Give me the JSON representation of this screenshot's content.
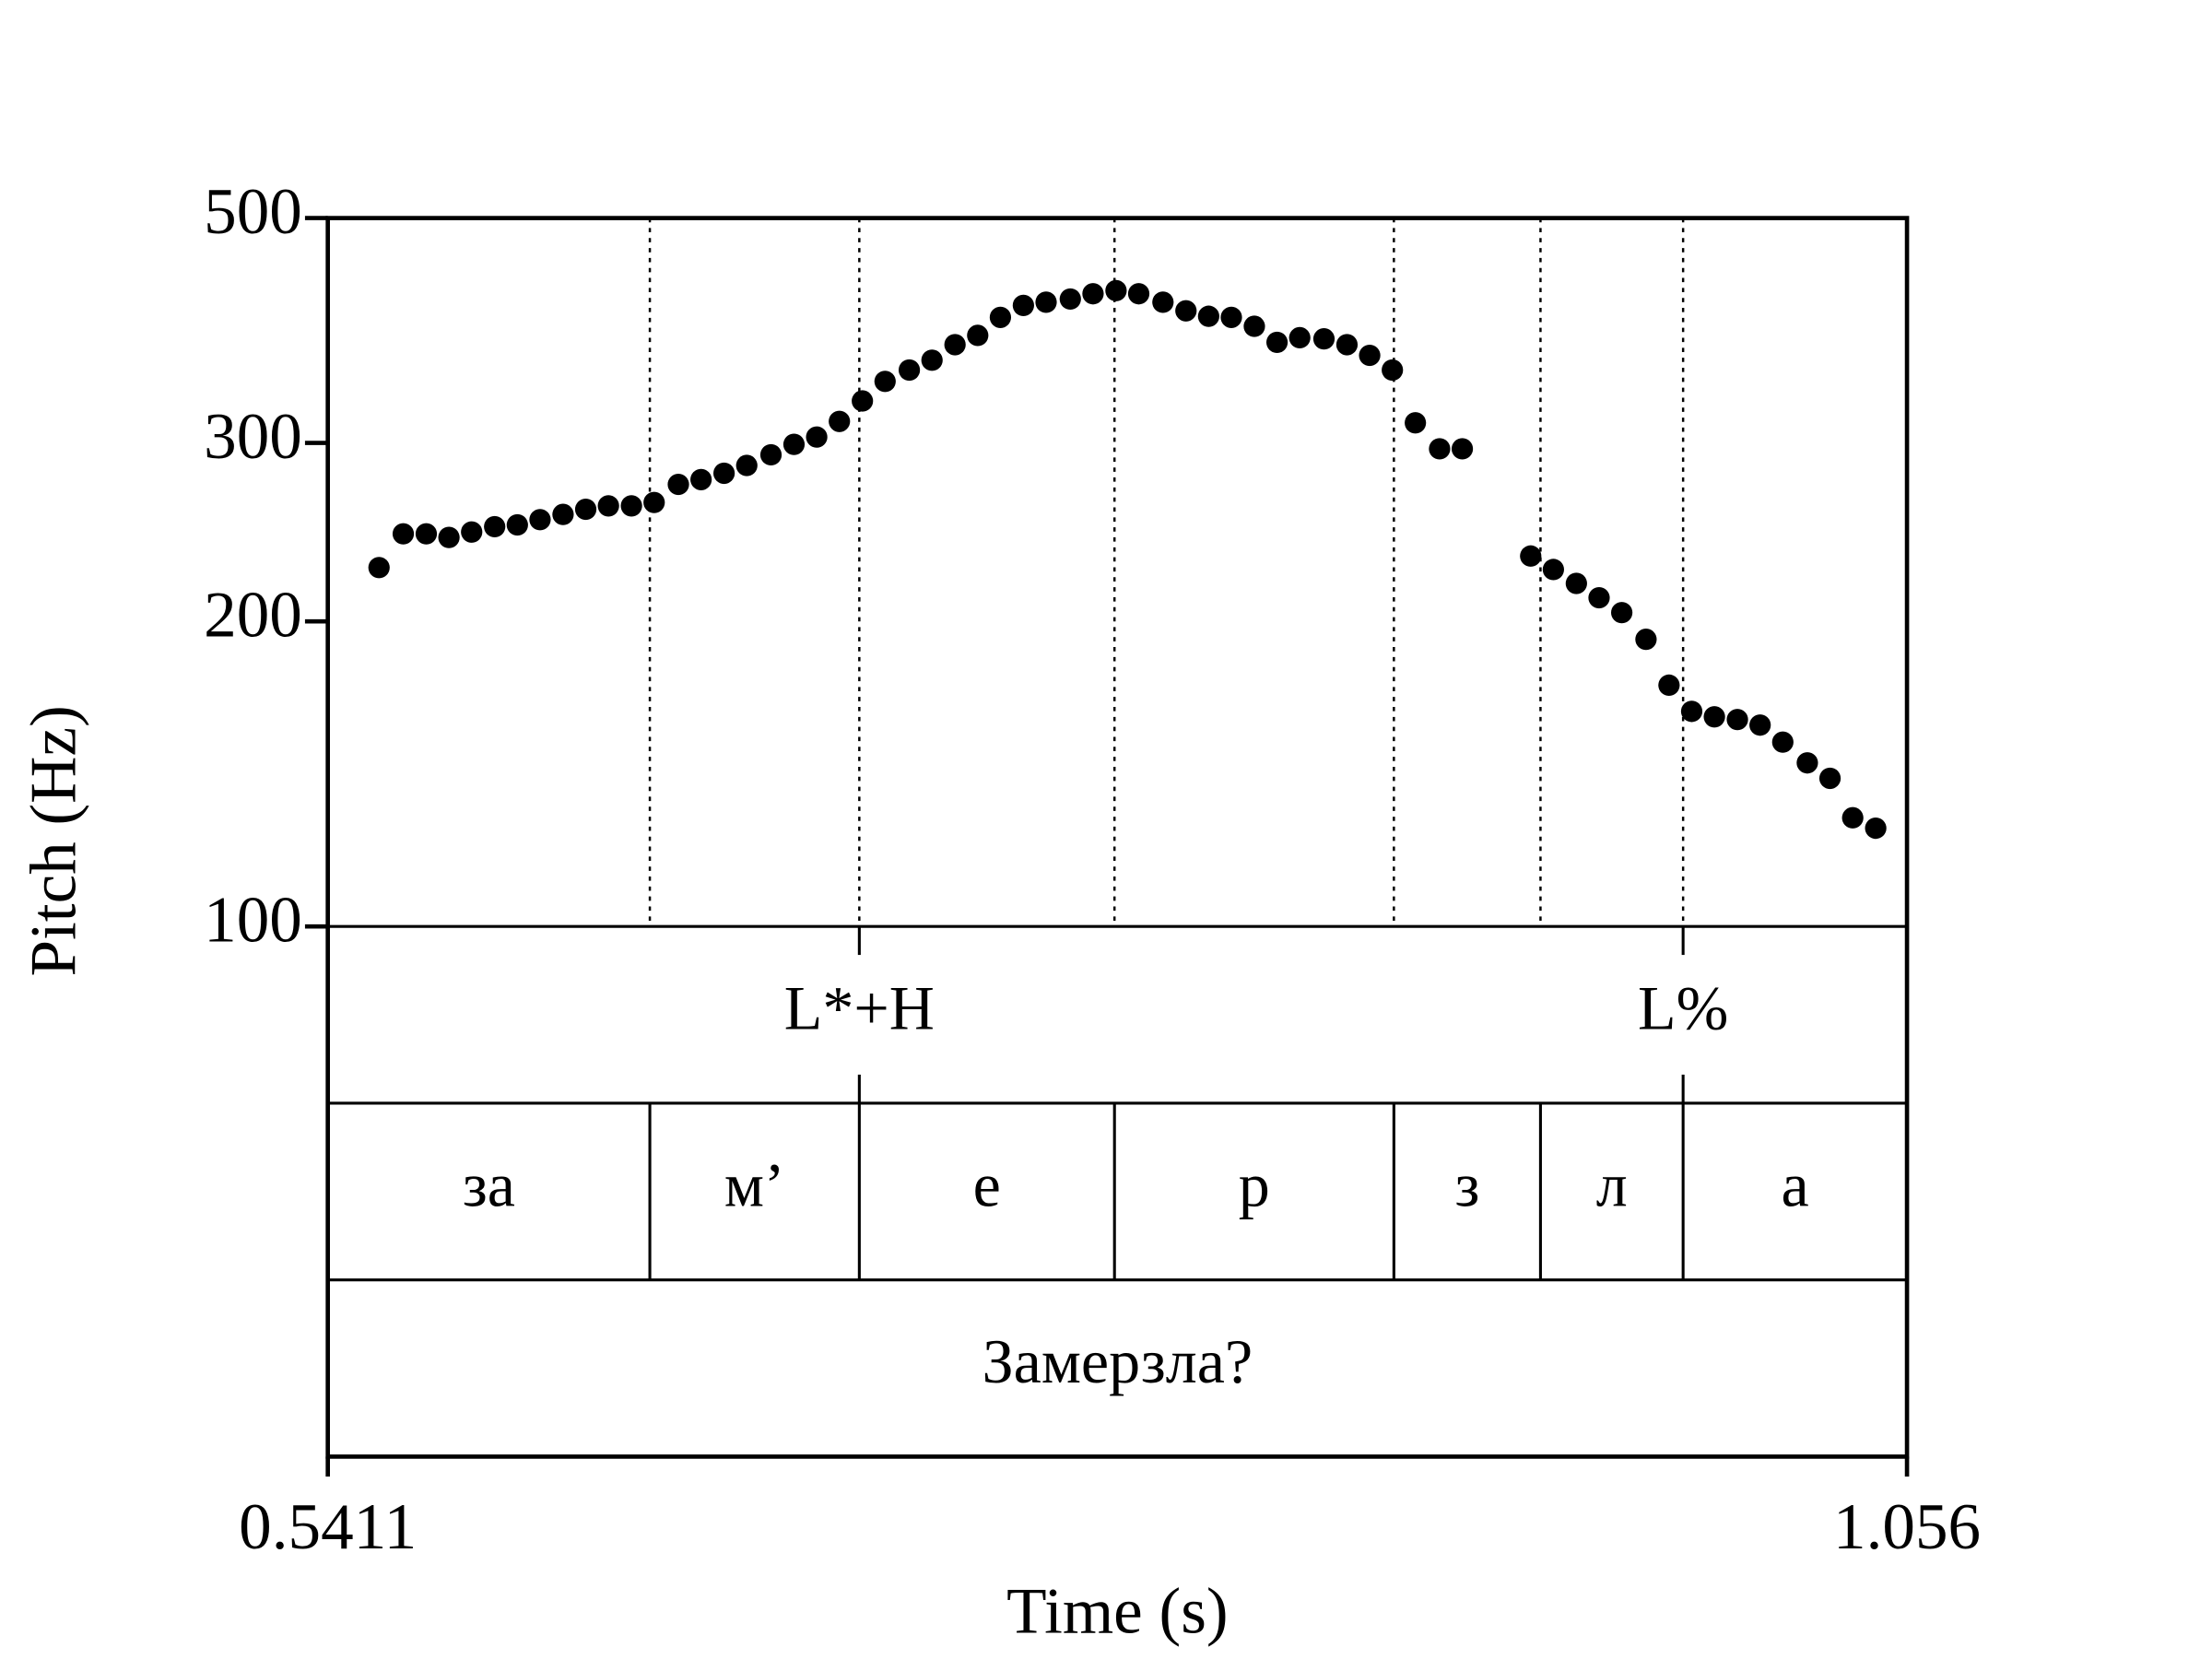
{
  "chart_data": {
    "type": "scatter",
    "y_label": "Pitch (Hz)",
    "x_label": "Time (s)",
    "xlim": [
      0.5411,
      1.056
    ],
    "xticks": [
      0.5411,
      1.056
    ],
    "ylim": [
      100,
      500
    ],
    "yticks": [
      100,
      200,
      300,
      500
    ],
    "log_y": true,
    "color": "#000000",
    "x": [
      0.5578,
      0.5657,
      0.5732,
      0.5806,
      0.588,
      0.5955,
      0.6029,
      0.6103,
      0.6178,
      0.6252,
      0.6326,
      0.6401,
      0.6475,
      0.6554,
      0.6628,
      0.6703,
      0.6777,
      0.6856,
      0.6931,
      0.7005,
      0.7079,
      0.7154,
      0.7228,
      0.7307,
      0.7381,
      0.7456,
      0.753,
      0.7604,
      0.7679,
      0.7753,
      0.7832,
      0.7906,
      0.7981,
      0.8055,
      0.8134,
      0.8209,
      0.8283,
      0.8357,
      0.8432,
      0.8506,
      0.858,
      0.8659,
      0.8734,
      0.8808,
      0.8882,
      0.8957,
      0.9036,
      0.911,
      0.9333,
      0.9407,
      0.9482,
      0.9556,
      0.963,
      0.9709,
      0.9784,
      0.9858,
      0.9932,
      1.0007,
      1.0081,
      1.0155,
      1.0235,
      1.0309,
      1.0383,
      1.0458
    ],
    "values": [
      226,
      244,
      244,
      242,
      245,
      248,
      249,
      252,
      255,
      258,
      260,
      260,
      262,
      273,
      276,
      280,
      285,
      292,
      299,
      304,
      315,
      330,
      345,
      354,
      362,
      375,
      383,
      399,
      410,
      413,
      416,
      421,
      424,
      421,
      413,
      405,
      400,
      399,
      391,
      377,
      381,
      380,
      375,
      366,
      354,
      314,
      296,
      296,
      232,
      225,
      218,
      211,
      204,
      192,
      173,
      163,
      161,
      160,
      158,
      152,
      145,
      140,
      128,
      125
    ],
    "tone_tier": {
      "times": [
        0.7144,
        0.983
      ],
      "labels": [
        "L*+H",
        "L%"
      ]
    },
    "syllable_tier": {
      "boundaries": [
        0.6461,
        0.7144,
        0.7976,
        0.8887,
        0.9365,
        0.983
      ],
      "labels": [
        "за",
        "м’",
        "е",
        "р",
        "з",
        "л",
        "а"
      ]
    },
    "sentence_tier": {
      "label": "Замерзла?"
    }
  }
}
